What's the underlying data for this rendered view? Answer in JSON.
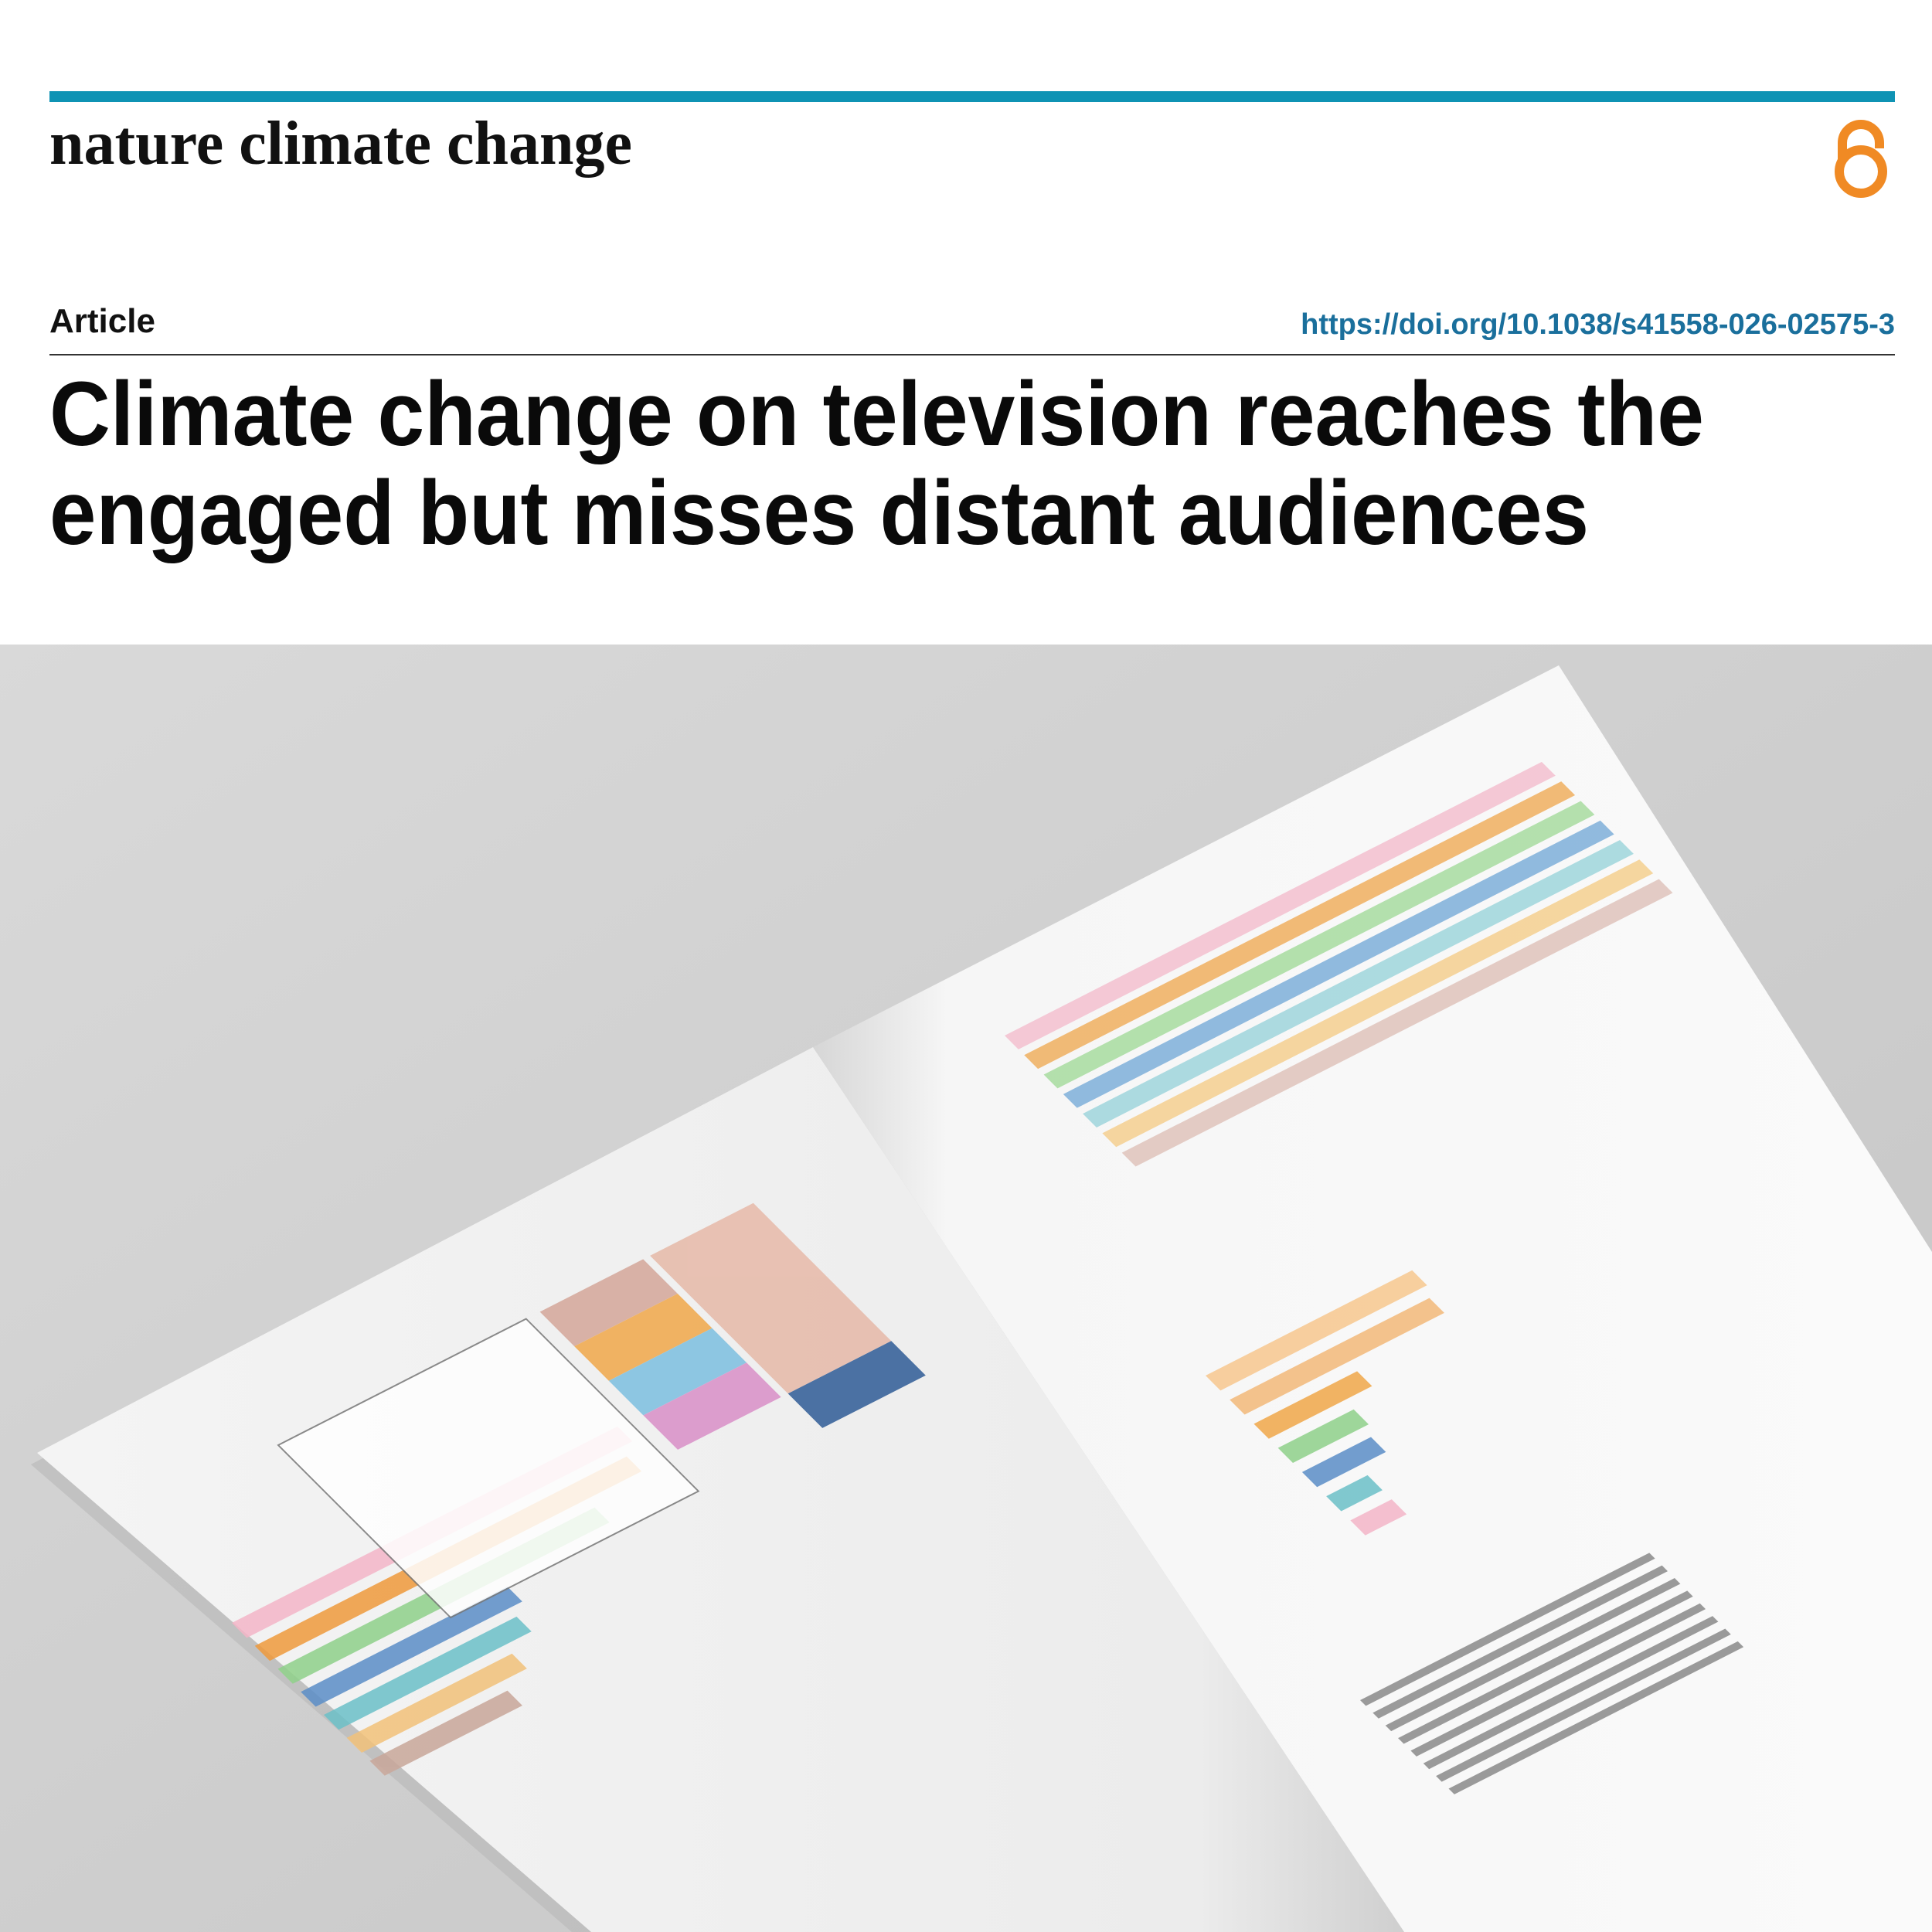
{
  "header": {
    "journal": "nature climate change",
    "article_type": "Article",
    "doi": "https://doi.org/10.1038/s41558-026-02575-3"
  },
  "title": {
    "lines": [
      "Climate change on television reaches the",
      "engaged but misses distant audiences"
    ]
  }
}
